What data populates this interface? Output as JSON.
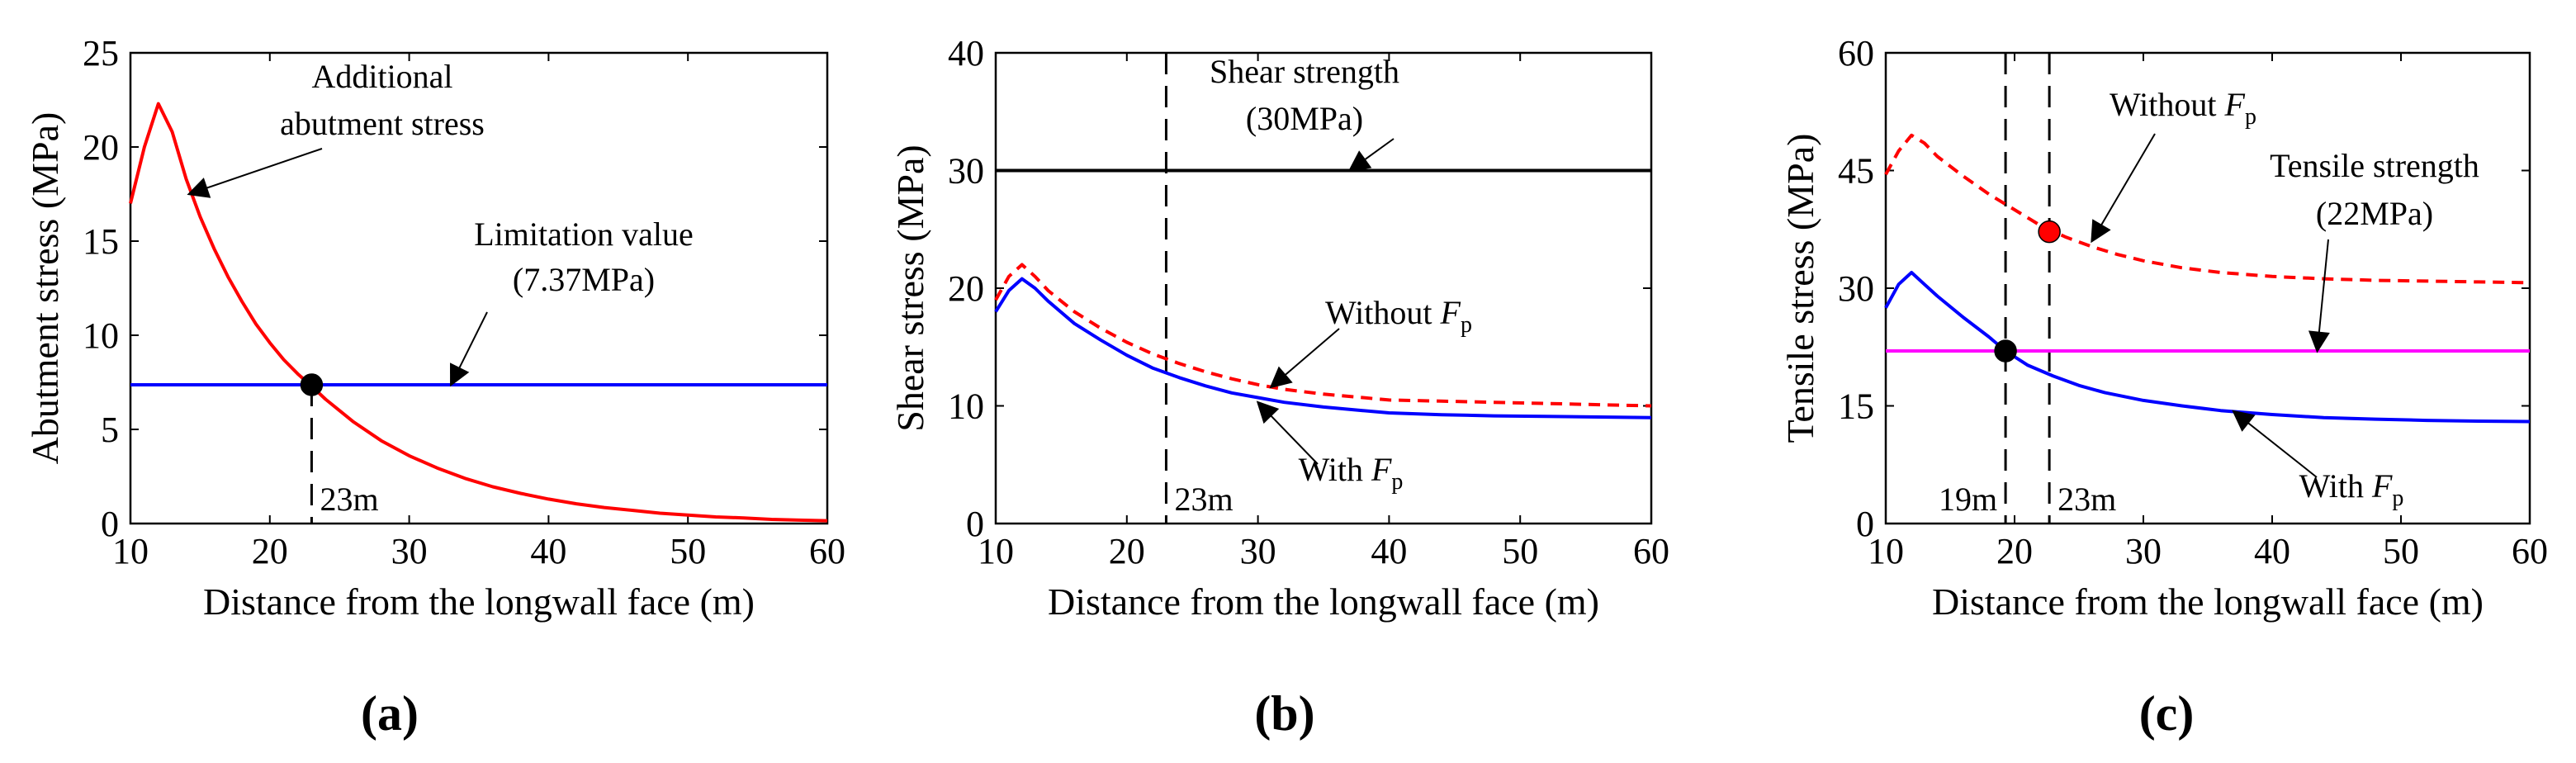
{
  "chart_data": [
    {
      "type": "line",
      "panel_label": "(a)",
      "xlabel": "Distance from the longwall face (m)",
      "ylabel": "Abutment stress (MPa)",
      "xlim": [
        10,
        60
      ],
      "ylim": [
        0,
        25
      ],
      "xticks": [
        10,
        20,
        30,
        40,
        50,
        60
      ],
      "yticks": [
        0,
        5,
        10,
        15,
        20,
        25
      ],
      "series": [
        {
          "name": "Additional abutment stress",
          "color": "#ff0000",
          "dash": "solid",
          "x": [
            10,
            11,
            12,
            13,
            14,
            15,
            16,
            17,
            18,
            19,
            20,
            21,
            22,
            23,
            24,
            25,
            26,
            27,
            28,
            30,
            32,
            34,
            36,
            38,
            40,
            42,
            44,
            46,
            48,
            50,
            52,
            54,
            56,
            58,
            60
          ],
          "y": [
            17.0,
            20.0,
            22.3,
            20.8,
            18.3,
            16.3,
            14.6,
            13.1,
            11.8,
            10.6,
            9.6,
            8.7,
            7.95,
            7.3,
            6.6,
            6.0,
            5.4,
            4.9,
            4.4,
            3.6,
            2.95,
            2.4,
            1.95,
            1.6,
            1.3,
            1.05,
            0.85,
            0.7,
            0.55,
            0.45,
            0.35,
            0.3,
            0.22,
            0.18,
            0.15
          ]
        },
        {
          "name": "Limitation value",
          "color": "#0000ff",
          "dash": "solid",
          "x": [
            10,
            60
          ],
          "y": [
            7.37,
            7.37
          ]
        }
      ],
      "vlines": [
        {
          "x": 23,
          "y0": 0,
          "y1": 7.37,
          "label": "23m"
        }
      ],
      "markers": [
        {
          "x": 23,
          "y": 7.37,
          "color": "#000000"
        }
      ],
      "annotations": [
        {
          "lines": [
            "Additional",
            "abutment stress"
          ],
          "tip": [
            14.2,
            17.5
          ]
        },
        {
          "lines": [
            "Limitation value",
            "(7.37MPa)"
          ],
          "tip": [
            33,
            7.37
          ]
        }
      ]
    },
    {
      "type": "line",
      "panel_label": "(b)",
      "xlabel": "Distance from the longwall face (m)",
      "ylabel": "Shear stress (MPa)",
      "xlim": [
        10,
        60
      ],
      "ylim": [
        0,
        40
      ],
      "xticks": [
        10,
        20,
        30,
        40,
        50,
        60
      ],
      "yticks": [
        0,
        10,
        20,
        30,
        40
      ],
      "series": [
        {
          "name": "Shear strength",
          "color": "#000000",
          "dash": "solid",
          "x": [
            10,
            60
          ],
          "y": [
            30,
            30
          ]
        },
        {
          "name": "Without F_p",
          "color": "#ff0000",
          "dash": "dashed",
          "x": [
            10,
            11,
            12,
            13,
            14,
            16,
            18,
            20,
            22,
            24,
            26,
            28,
            30,
            32,
            35,
            38,
            40,
            44,
            48,
            52,
            56,
            60
          ],
          "y": [
            19.0,
            21.0,
            22.0,
            21.0,
            19.8,
            18.0,
            16.6,
            15.4,
            14.4,
            13.6,
            12.9,
            12.3,
            11.8,
            11.4,
            11.0,
            10.7,
            10.5,
            10.4,
            10.3,
            10.2,
            10.1,
            10.0
          ]
        },
        {
          "name": "With F_p",
          "color": "#0000ff",
          "dash": "solid",
          "x": [
            10,
            11,
            12,
            13,
            14,
            16,
            18,
            20,
            22,
            24,
            26,
            28,
            30,
            32,
            35,
            38,
            40,
            44,
            48,
            52,
            56,
            60
          ],
          "y": [
            18.0,
            19.8,
            20.8,
            20.0,
            18.9,
            17.0,
            15.6,
            14.3,
            13.2,
            12.4,
            11.7,
            11.1,
            10.7,
            10.3,
            9.9,
            9.6,
            9.4,
            9.25,
            9.15,
            9.1,
            9.05,
            9.0
          ]
        }
      ],
      "vlines": [
        {
          "x": 23,
          "y0": 0,
          "y1": 40,
          "label": "23m"
        }
      ],
      "markers": [],
      "annotations": [
        {
          "lines": [
            "Shear strength",
            "(30MPa)"
          ],
          "tip": [
            37,
            30
          ]
        },
        {
          "lines": [
            "Without F",
            "p"
          ],
          "tip": [
            31,
            11.6
          ],
          "fp": true
        },
        {
          "lines": [
            "With F",
            "p"
          ],
          "tip": [
            30,
            10.3
          ],
          "fp": true
        }
      ]
    },
    {
      "type": "line",
      "panel_label": "(c)",
      "xlabel": "Distance from the longwall face (m)",
      "ylabel": "Tensile stress (MPa)",
      "xlim": [
        10,
        60
      ],
      "ylim": [
        0,
        60
      ],
      "xticks": [
        10,
        20,
        30,
        40,
        50,
        60
      ],
      "yticks": [
        0,
        15,
        30,
        45,
        60
      ],
      "series": [
        {
          "name": "Tensile strength",
          "color": "#ff00ff",
          "dash": "solid",
          "x": [
            10,
            60
          ],
          "y": [
            22,
            22
          ]
        },
        {
          "name": "Without F_p",
          "color": "#ff0000",
          "dash": "dashed",
          "x": [
            10,
            11,
            12,
            13,
            14,
            16,
            18,
            20,
            22,
            24,
            26,
            28,
            30,
            33,
            36,
            40,
            44,
            48,
            52,
            56,
            60
          ],
          "y": [
            44.5,
            47.5,
            49.5,
            48.5,
            46.8,
            44.3,
            42.0,
            40.0,
            38.0,
            36.5,
            35.3,
            34.3,
            33.5,
            32.6,
            32.0,
            31.5,
            31.2,
            31.0,
            30.9,
            30.8,
            30.7
          ]
        },
        {
          "name": "With F_p",
          "color": "#0000ff",
          "dash": "solid",
          "x": [
            10,
            11,
            12,
            13,
            14,
            16,
            18,
            19.3,
            21,
            23,
            25,
            27,
            30,
            33,
            36,
            40,
            44,
            48,
            52,
            56,
            60
          ],
          "y": [
            27.5,
            30.5,
            32.0,
            30.5,
            29.0,
            26.3,
            23.8,
            22.0,
            20.2,
            18.8,
            17.6,
            16.7,
            15.7,
            15.0,
            14.4,
            13.9,
            13.5,
            13.3,
            13.15,
            13.05,
            13.0
          ]
        }
      ],
      "vlines": [
        {
          "x": 19.3,
          "y0": 0,
          "y1": 60,
          "label": "19m"
        },
        {
          "x": 22.7,
          "y0": 0,
          "y1": 60,
          "label": "23m"
        }
      ],
      "markers": [
        {
          "x": 19.3,
          "y": 22,
          "color": "#000000"
        },
        {
          "x": 22.7,
          "y": 37.2,
          "color": "#ff0000"
        }
      ],
      "annotations": [
        {
          "lines": [
            "Without F",
            "p"
          ],
          "tip": [
            26,
            36
          ],
          "fp": true
        },
        {
          "lines": [
            "Tensile strength",
            "(22MPa)"
          ],
          "tip": [
            43.5,
            22
          ]
        },
        {
          "lines": [
            "With F",
            "p"
          ],
          "tip": [
            37,
            14.3
          ],
          "fp": true
        }
      ]
    }
  ]
}
